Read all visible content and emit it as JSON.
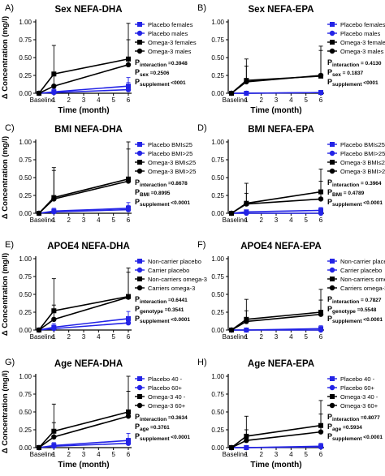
{
  "y_axis_label": "Δ Concentration (mg/l)",
  "colors": {
    "placebo": "#2323e6",
    "omega3": "#000000"
  },
  "x_ticks": {
    "values": [
      0,
      1,
      2,
      3,
      4,
      5,
      6
    ],
    "labels": [
      "Baseline",
      "1",
      "2",
      "3",
      "4",
      "5",
      "6"
    ]
  },
  "y_ticks": [
    "0.00",
    "0.25",
    "0.50",
    "0.75",
    "1.00"
  ],
  "chart_data": [
    {
      "panel": "A)",
      "type": "line",
      "title": "Sex NEFA-DHA",
      "xlabel": "Time (month)",
      "ylabel": "Δ Concentration (mg/l)",
      "xlim": [
        0,
        6
      ],
      "ylim": [
        0,
        1.0
      ],
      "series": [
        {
          "name": "Placebo females",
          "group": "placebo",
          "marker": "square",
          "x": [
            0,
            1,
            6
          ],
          "y": [
            0.0,
            0.02,
            0.1
          ],
          "err": [
            0,
            0.04,
            0.12
          ]
        },
        {
          "name": "Placebo males",
          "group": "placebo",
          "marker": "circle",
          "x": [
            0,
            1,
            6
          ],
          "y": [
            0.0,
            0.01,
            0.05
          ],
          "err": [
            0,
            0.03,
            0.1
          ]
        },
        {
          "name": "Omega-3 females",
          "group": "omega3",
          "marker": "square",
          "x": [
            0,
            1,
            6
          ],
          "y": [
            0.0,
            0.27,
            0.48
          ],
          "err": [
            0,
            0.4,
            0.5
          ]
        },
        {
          "name": "Omega-3 males",
          "group": "omega3",
          "marker": "circle",
          "x": [
            0,
            1,
            6
          ],
          "y": [
            0.0,
            0.1,
            0.4
          ],
          "err": [
            0,
            0.15,
            0.35
          ]
        }
      ],
      "stats": [
        {
          "sub": "interaction",
          "value": "=0.3948"
        },
        {
          "sub": "sex",
          "value": "=0.2506"
        },
        {
          "sub": "supplement",
          "value": "<0001"
        }
      ]
    },
    {
      "panel": "B)",
      "type": "line",
      "title": "Sex NEFA-EPA",
      "xlabel": "Time (month)",
      "ylabel": "",
      "xlim": [
        0,
        6
      ],
      "ylim": [
        0,
        1.0
      ],
      "series": [
        {
          "name": "Placebo females",
          "group": "placebo",
          "marker": "square",
          "x": [
            0,
            1,
            6
          ],
          "y": [
            0.0,
            0.0,
            0.01
          ],
          "err": [
            0,
            0.02,
            0.03
          ]
        },
        {
          "name": "Placebo males",
          "group": "placebo",
          "marker": "circle",
          "x": [
            0,
            1,
            6
          ],
          "y": [
            0.0,
            0.0,
            0.01
          ],
          "err": [
            0,
            0.02,
            0.03
          ]
        },
        {
          "name": "Omega-3 females",
          "group": "omega3",
          "marker": "square",
          "x": [
            0,
            1,
            6
          ],
          "y": [
            0.0,
            0.18,
            0.24
          ],
          "err": [
            0,
            0.3,
            0.42
          ]
        },
        {
          "name": "Omega-3 males",
          "group": "omega3",
          "marker": "circle",
          "x": [
            0,
            1,
            6
          ],
          "y": [
            0.0,
            0.16,
            0.25
          ],
          "err": [
            0,
            0.22,
            0.35
          ]
        }
      ],
      "stats": [
        {
          "sub": "interaction",
          "value": "= 0.4130"
        },
        {
          "sub": "sex",
          "value": "= 0.1837"
        },
        {
          "sub": "supplement",
          "value": "<0001"
        }
      ]
    },
    {
      "panel": "C)",
      "type": "line",
      "title": "BMI NEFA-DHA",
      "xlabel": "",
      "ylabel": "Δ Concentration (mg/l)",
      "xlim": [
        0,
        6
      ],
      "ylim": [
        0,
        1.0
      ],
      "series": [
        {
          "name": "Placebo BMI≤25",
          "group": "placebo",
          "marker": "square",
          "x": [
            0,
            1,
            6
          ],
          "y": [
            0.0,
            0.03,
            0.07
          ],
          "err": [
            0,
            0.04,
            0.08
          ]
        },
        {
          "name": "Placebo BMI>25",
          "group": "placebo",
          "marker": "circle",
          "x": [
            0,
            1,
            6
          ],
          "y": [
            0.0,
            0.02,
            0.05
          ],
          "err": [
            0,
            0.03,
            0.06
          ]
        },
        {
          "name": "Omega-3 BMI≤25",
          "group": "omega3",
          "marker": "square",
          "x": [
            0,
            1,
            6
          ],
          "y": [
            0.0,
            0.22,
            0.48
          ],
          "err": [
            0,
            0.42,
            0.52
          ]
        },
        {
          "name": "Omega-3 BMI>25",
          "group": "omega3",
          "marker": "circle",
          "x": [
            0,
            1,
            6
          ],
          "y": [
            0.0,
            0.2,
            0.45
          ],
          "err": [
            0,
            0.4,
            0.45
          ]
        }
      ],
      "stats": [
        {
          "sub": "interaction",
          "value": "=0.8678"
        },
        {
          "sub": "BMI",
          "value": "=0.8995"
        },
        {
          "sub": "supplement",
          "value": "<0.0001"
        }
      ]
    },
    {
      "panel": "D)",
      "type": "line",
      "title": "BMI NEFA-EPA",
      "xlabel": "",
      "ylabel": "",
      "xlim": [
        0,
        6
      ],
      "ylim": [
        0,
        1.0
      ],
      "series": [
        {
          "name": "Placebo BMI≤25",
          "group": "placebo",
          "marker": "square",
          "x": [
            0,
            1,
            6
          ],
          "y": [
            0.0,
            0.02,
            0.04
          ],
          "err": [
            0,
            0.02,
            0.04
          ]
        },
        {
          "name": "Placebo BMI>25",
          "group": "placebo",
          "marker": "circle",
          "x": [
            0,
            1,
            6
          ],
          "y": [
            0.0,
            0.0,
            0.0
          ],
          "err": [
            0,
            0.01,
            0.02
          ]
        },
        {
          "name": "Omega-3 BMI≤25",
          "group": "omega3",
          "marker": "square",
          "x": [
            0,
            1,
            6
          ],
          "y": [
            0.0,
            0.14,
            0.3
          ],
          "err": [
            0,
            0.28,
            0.32
          ]
        },
        {
          "name": "Omega-3 BMI>25",
          "group": "omega3",
          "marker": "circle",
          "x": [
            0,
            1,
            6
          ],
          "y": [
            0.0,
            0.13,
            0.2
          ],
          "err": [
            0,
            0.15,
            0.25
          ]
        }
      ],
      "stats": [
        {
          "sub": "interaction",
          "value": "= 0.3964"
        },
        {
          "sub": "BMI",
          "value": "= 0.4789"
        },
        {
          "sub": "supplement",
          "value": "<0.0001"
        }
      ]
    },
    {
      "panel": "E)",
      "type": "line",
      "title": "APOE4 NEFA-DHA",
      "xlabel": "",
      "ylabel": "Δ Concentration (mg/l)",
      "xlim": [
        0,
        6
      ],
      "ylim": [
        0,
        1.0
      ],
      "series": [
        {
          "name": "Non-carrier placebo",
          "group": "placebo",
          "marker": "square",
          "x": [
            0,
            1,
            6
          ],
          "y": [
            0.0,
            0.04,
            0.16
          ],
          "err": [
            0,
            0.05,
            0.1
          ]
        },
        {
          "name": "Carrier placebo",
          "group": "placebo",
          "marker": "circle",
          "x": [
            0,
            1,
            6
          ],
          "y": [
            0.0,
            0.02,
            0.1
          ],
          "err": [
            0,
            0.04,
            0.08
          ]
        },
        {
          "name": "Non-carriers omega-3",
          "group": "omega3",
          "marker": "square",
          "x": [
            0,
            1,
            6
          ],
          "y": [
            0.0,
            0.27,
            0.47
          ],
          "err": [
            0,
            0.45,
            0.4
          ]
        },
        {
          "name": "Carriers omega-3",
          "group": "omega3",
          "marker": "circle",
          "x": [
            0,
            1,
            6
          ],
          "y": [
            0.0,
            0.15,
            0.46
          ],
          "err": [
            0,
            0.2,
            0.35
          ]
        }
      ],
      "stats": [
        {
          "sub": "interaction",
          "value": "=0.6441"
        },
        {
          "sub": "genotype",
          "value": "=0.3541"
        },
        {
          "sub": "supplement",
          "value": "<0.0001"
        }
      ]
    },
    {
      "panel": "F)",
      "type": "line",
      "title": "APOE4 NEFA-EPA",
      "xlabel": "",
      "ylabel": "",
      "xlim": [
        0,
        6
      ],
      "ylim": [
        0,
        1.0
      ],
      "series": [
        {
          "name": "Non-carrier placebo",
          "group": "placebo",
          "marker": "square",
          "x": [
            0,
            1,
            6
          ],
          "y": [
            0.0,
            0.0,
            0.02
          ],
          "err": [
            0,
            0.02,
            0.04
          ]
        },
        {
          "name": "Carrier placebo",
          "group": "placebo",
          "marker": "circle",
          "x": [
            0,
            1,
            6
          ],
          "y": [
            0.0,
            0.0,
            0.0
          ],
          "err": [
            0,
            0.01,
            0.02
          ]
        },
        {
          "name": "Non-carriers omega-3",
          "group": "omega3",
          "marker": "square",
          "x": [
            0,
            1,
            6
          ],
          "y": [
            0.0,
            0.15,
            0.25
          ],
          "err": [
            0,
            0.28,
            0.32
          ]
        },
        {
          "name": "Carriers omega-3",
          "group": "omega3",
          "marker": "circle",
          "x": [
            0,
            1,
            6
          ],
          "y": [
            0.0,
            0.12,
            0.22
          ],
          "err": [
            0,
            0.15,
            0.2
          ]
        }
      ],
      "stats": [
        {
          "sub": "interaction",
          "value": "= 0.7827"
        },
        {
          "sub": "genotype",
          "value": "=0.5548"
        },
        {
          "sub": "supplement",
          "value": "<0.0001"
        }
      ]
    },
    {
      "panel": "G)",
      "type": "line",
      "title": "Age NEFA-DHA",
      "xlabel": "Time (month)",
      "ylabel": "Δ Concentration (mg/l)",
      "xlim": [
        0,
        6
      ],
      "ylim": [
        0,
        1.0
      ],
      "series": [
        {
          "name": "Placebo 40 -",
          "group": "placebo",
          "marker": "square",
          "x": [
            0,
            1,
            6
          ],
          "y": [
            0.0,
            0.03,
            0.1
          ],
          "err": [
            0,
            0.04,
            0.1
          ]
        },
        {
          "name": "Placebo 60+",
          "group": "placebo",
          "marker": "circle",
          "x": [
            0,
            1,
            6
          ],
          "y": [
            0.0,
            0.02,
            0.06
          ],
          "err": [
            0,
            0.03,
            0.07
          ]
        },
        {
          "name": "Omega-3 40 -",
          "group": "omega3",
          "marker": "square",
          "x": [
            0,
            1,
            6
          ],
          "y": [
            0.0,
            0.23,
            0.5
          ],
          "err": [
            0,
            0.38,
            0.5
          ]
        },
        {
          "name": "Omega-3 60+",
          "group": "omega3",
          "marker": "circle",
          "x": [
            0,
            1,
            6
          ],
          "y": [
            0.0,
            0.15,
            0.44
          ],
          "err": [
            0,
            0.2,
            0.35
          ]
        }
      ],
      "stats": [
        {
          "sub": "interaction",
          "value": "=0.3634"
        },
        {
          "sub": "age",
          "value": "=0.3761"
        },
        {
          "sub": "supplement",
          "value": "<0.0001"
        }
      ]
    },
    {
      "panel": "H)",
      "type": "line",
      "title": "Age NEFA-EPA",
      "xlabel": "Time (month)",
      "ylabel": "",
      "xlim": [
        0,
        6
      ],
      "ylim": [
        0,
        1.0
      ],
      "series": [
        {
          "name": "Placebo 40 -",
          "group": "placebo",
          "marker": "square",
          "x": [
            0,
            1,
            6
          ],
          "y": [
            0.0,
            0.0,
            0.02
          ],
          "err": [
            0,
            0.02,
            0.04
          ]
        },
        {
          "name": "Placebo 60+",
          "group": "placebo",
          "marker": "circle",
          "x": [
            0,
            1,
            6
          ],
          "y": [
            0.0,
            0.0,
            0.01
          ],
          "err": [
            0,
            0.01,
            0.03
          ]
        },
        {
          "name": "Omega-3 40 -",
          "group": "omega3",
          "marker": "square",
          "x": [
            0,
            1,
            6
          ],
          "y": [
            0.0,
            0.16,
            0.31
          ],
          "err": [
            0,
            0.28,
            0.35
          ]
        },
        {
          "name": "Omega-3 60+",
          "group": "omega3",
          "marker": "circle",
          "x": [
            0,
            1,
            6
          ],
          "y": [
            0.0,
            0.1,
            0.22
          ],
          "err": [
            0,
            0.15,
            0.25
          ]
        }
      ],
      "stats": [
        {
          "sub": "interaction",
          "value": "=0.8077"
        },
        {
          "sub": "age",
          "value": "=0.5934"
        },
        {
          "sub": "supplement",
          "value": "<0.0001"
        }
      ]
    }
  ]
}
